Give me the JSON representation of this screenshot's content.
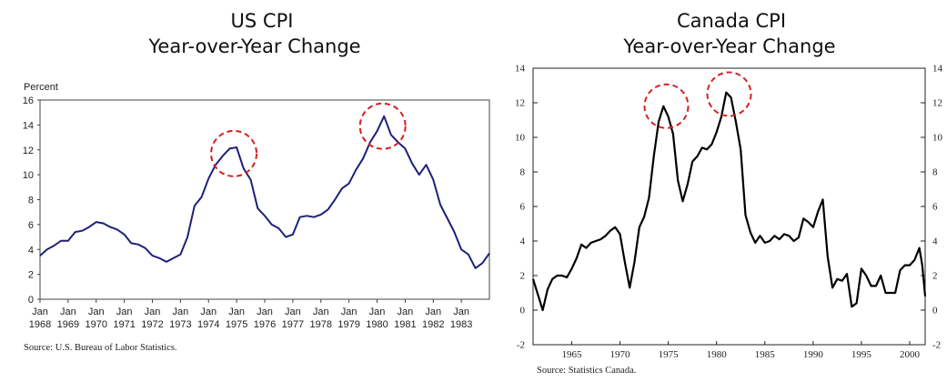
{
  "chart_data": [
    {
      "type": "line",
      "title": "US CPI",
      "subtitle": "Year-over-Year Change",
      "ylabel": "Percent",
      "xlabel": "",
      "ylim": [
        0,
        16
      ],
      "yticks": [
        0,
        2,
        4,
        6,
        8,
        10,
        12,
        14,
        16
      ],
      "xlim": [
        1968.0,
        1984.0
      ],
      "xticks": [
        {
          "top": "Jan",
          "bottom": "1968",
          "x": 1968
        },
        {
          "top": "Jan",
          "bottom": "1969",
          "x": 1969
        },
        {
          "top": "Jan",
          "bottom": "1970",
          "x": 1970
        },
        {
          "top": "Jan",
          "bottom": "1971",
          "x": 1971
        },
        {
          "top": "Jan",
          "bottom": "1972",
          "x": 1972
        },
        {
          "top": "Jan",
          "bottom": "1973",
          "x": 1973
        },
        {
          "top": "Jan",
          "bottom": "1974",
          "x": 1974
        },
        {
          "top": "Jan",
          "bottom": "1975",
          "x": 1975
        },
        {
          "top": "Jan",
          "bottom": "1976",
          "x": 1976
        },
        {
          "top": "Jan",
          "bottom": "1977",
          "x": 1977
        },
        {
          "top": "Jan",
          "bottom": "1978",
          "x": 1978
        },
        {
          "top": "Jan",
          "bottom": "1979",
          "x": 1979
        },
        {
          "top": "Jan",
          "bottom": "1980",
          "x": 1980
        },
        {
          "top": "Jan",
          "bottom": "1981",
          "x": 1981
        },
        {
          "top": "Jan",
          "bottom": "1982",
          "x": 1982
        },
        {
          "top": "Jan",
          "bottom": "1983",
          "x": 1983
        }
      ],
      "source": "Source: U.S. Bureau of Labor Statistics.",
      "grid": false,
      "colors": {
        "line": "#1f1f7a",
        "highlight": "#d42020"
      },
      "highlights": [
        {
          "x": 1974.9,
          "y": 11.7
        },
        {
          "x": 1980.2,
          "y": 13.9
        }
      ],
      "series": [
        {
          "x": [
            1968.0,
            1968.25,
            1968.5,
            1968.75,
            1969.0,
            1969.25,
            1969.5,
            1969.75,
            1970.0,
            1970.25,
            1970.5,
            1970.75,
            1971.0,
            1971.25,
            1971.5,
            1971.75,
            1972.0,
            1972.25,
            1972.5,
            1972.75,
            1973.0,
            1973.25,
            1973.5,
            1973.75,
            1974.0,
            1974.25,
            1974.5,
            1974.75,
            1975.0,
            1975.25,
            1975.5,
            1975.75,
            1976.0,
            1976.25,
            1976.5,
            1976.75,
            1977.0,
            1977.25,
            1977.5,
            1977.75,
            1978.0,
            1978.25,
            1978.5,
            1978.75,
            1979.0,
            1979.25,
            1979.5,
            1979.75,
            1980.0,
            1980.25,
            1980.5,
            1980.75,
            1981.0,
            1981.25,
            1981.5,
            1981.75,
            1982.0,
            1982.25,
            1982.5,
            1982.75,
            1983.0,
            1983.25,
            1983.5,
            1983.75,
            1984.0
          ],
          "values": [
            3.5,
            4.0,
            4.3,
            4.7,
            4.7,
            5.4,
            5.5,
            5.8,
            6.2,
            6.1,
            5.8,
            5.6,
            5.2,
            4.5,
            4.4,
            4.1,
            3.5,
            3.3,
            3.0,
            3.3,
            3.6,
            5.0,
            7.5,
            8.2,
            9.7,
            10.8,
            11.5,
            12.1,
            12.2,
            10.5,
            9.6,
            7.3,
            6.7,
            6.0,
            5.7,
            5.0,
            5.2,
            6.6,
            6.7,
            6.6,
            6.8,
            7.2,
            8.0,
            8.9,
            9.3,
            10.4,
            11.3,
            12.6,
            13.5,
            14.7,
            13.2,
            12.6,
            12.1,
            10.9,
            10.0,
            10.8,
            9.6,
            7.6,
            6.5,
            5.4,
            4.0,
            3.6,
            2.5,
            2.9,
            3.7
          ]
        }
      ]
    },
    {
      "type": "line",
      "title": "Canada CPI",
      "subtitle": "Year-over-Year Change",
      "ylabel": "",
      "xlabel": "",
      "ylim": [
        -2,
        14
      ],
      "yticks": [
        -2,
        0,
        2,
        4,
        6,
        8,
        10,
        12,
        14
      ],
      "xlim": [
        1961.0,
        2001.6
      ],
      "xticks": [
        1965,
        1970,
        1975,
        1980,
        1985,
        1990,
        1995,
        2000
      ],
      "source": "Source: Statistics Canada.",
      "grid": false,
      "colors": {
        "line": "#000000",
        "highlight": "#d42020"
      },
      "highlights": [
        {
          "x": 1974.8,
          "y": 11.8
        },
        {
          "x": 1981.3,
          "y": 12.5
        }
      ],
      "series": [
        {
          "x": [
            1961.0,
            1961.5,
            1962.0,
            1962.5,
            1963.0,
            1963.5,
            1964.0,
            1964.5,
            1965.0,
            1965.5,
            1966.0,
            1966.5,
            1967.0,
            1967.5,
            1968.0,
            1968.5,
            1969.0,
            1969.5,
            1970.0,
            1970.5,
            1971.0,
            1971.5,
            1972.0,
            1972.5,
            1973.0,
            1973.5,
            1974.0,
            1974.5,
            1975.0,
            1975.5,
            1976.0,
            1976.5,
            1977.0,
            1977.5,
            1978.0,
            1978.5,
            1979.0,
            1979.5,
            1980.0,
            1980.5,
            1981.0,
            1981.5,
            1982.0,
            1982.5,
            1983.0,
            1983.5,
            1984.0,
            1984.5,
            1985.0,
            1985.5,
            1986.0,
            1986.5,
            1987.0,
            1987.5,
            1988.0,
            1988.5,
            1989.0,
            1989.5,
            1990.0,
            1990.5,
            1991.0,
            1991.5,
            1992.0,
            1992.5,
            1993.0,
            1993.5,
            1994.0,
            1994.5,
            1995.0,
            1995.5,
            1996.0,
            1996.5,
            1997.0,
            1997.5,
            1998.0,
            1998.5,
            1999.0,
            1999.5,
            2000.0,
            2000.5,
            2001.0,
            2001.3,
            2001.6
          ],
          "values": [
            1.8,
            0.9,
            0.0,
            1.2,
            1.8,
            2.0,
            2.0,
            1.9,
            2.4,
            3.0,
            3.8,
            3.6,
            3.9,
            4.0,
            4.1,
            4.3,
            4.6,
            4.8,
            4.4,
            2.8,
            1.3,
            2.8,
            4.8,
            5.4,
            6.5,
            8.9,
            10.9,
            11.8,
            11.2,
            10.2,
            7.5,
            6.3,
            7.3,
            8.6,
            8.9,
            9.4,
            9.3,
            9.6,
            10.3,
            11.2,
            12.6,
            12.3,
            10.9,
            9.3,
            5.5,
            4.5,
            3.9,
            4.3,
            3.9,
            4.0,
            4.3,
            4.1,
            4.4,
            4.3,
            4.0,
            4.2,
            5.3,
            5.1,
            4.8,
            5.7,
            6.4,
            3.1,
            1.3,
            1.8,
            1.7,
            2.1,
            0.2,
            0.4,
            2.4,
            2.0,
            1.4,
            1.4,
            2.0,
            1.0,
            1.0,
            1.0,
            2.3,
            2.6,
            2.6,
            2.9,
            3.6,
            2.6,
            0.8
          ]
        }
      ]
    }
  ]
}
